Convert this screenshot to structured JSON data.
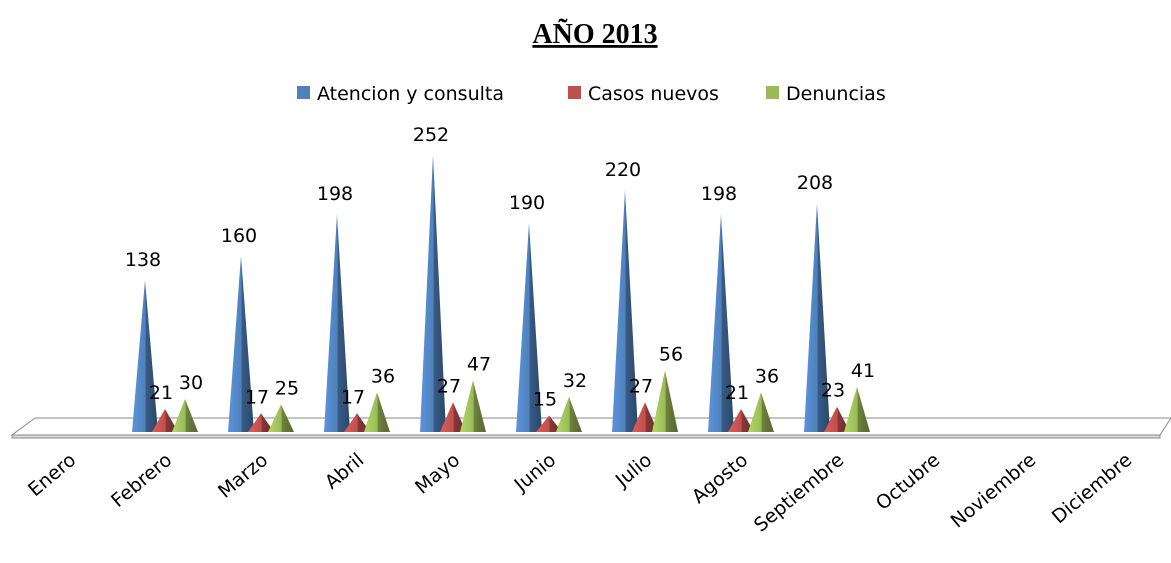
{
  "chart_data": {
    "type": "pyramid3d",
    "title": "AÑO 2013",
    "categories": [
      "Enero",
      "Febrero",
      "Marzo",
      "Abril",
      "Mayo",
      "Junio",
      "Julio",
      "Agosto",
      "Septiembre",
      "Octubre",
      "Noviembre",
      "Diciembre"
    ],
    "series": [
      {
        "name": "Atencion y consulta",
        "color": "#4f81bd",
        "values": [
          null,
          138,
          160,
          198,
          252,
          190,
          220,
          198,
          208,
          null,
          null,
          null
        ]
      },
      {
        "name": "Casos nuevos",
        "color": "#c0504d",
        "values": [
          null,
          21,
          17,
          17,
          27,
          15,
          27,
          21,
          23,
          null,
          null,
          null
        ]
      },
      {
        "name": "Denuncias",
        "color": "#9bbb59",
        "values": [
          null,
          30,
          25,
          36,
          47,
          32,
          56,
          36,
          41,
          null,
          null,
          null
        ]
      }
    ],
    "legend": "top"
  }
}
